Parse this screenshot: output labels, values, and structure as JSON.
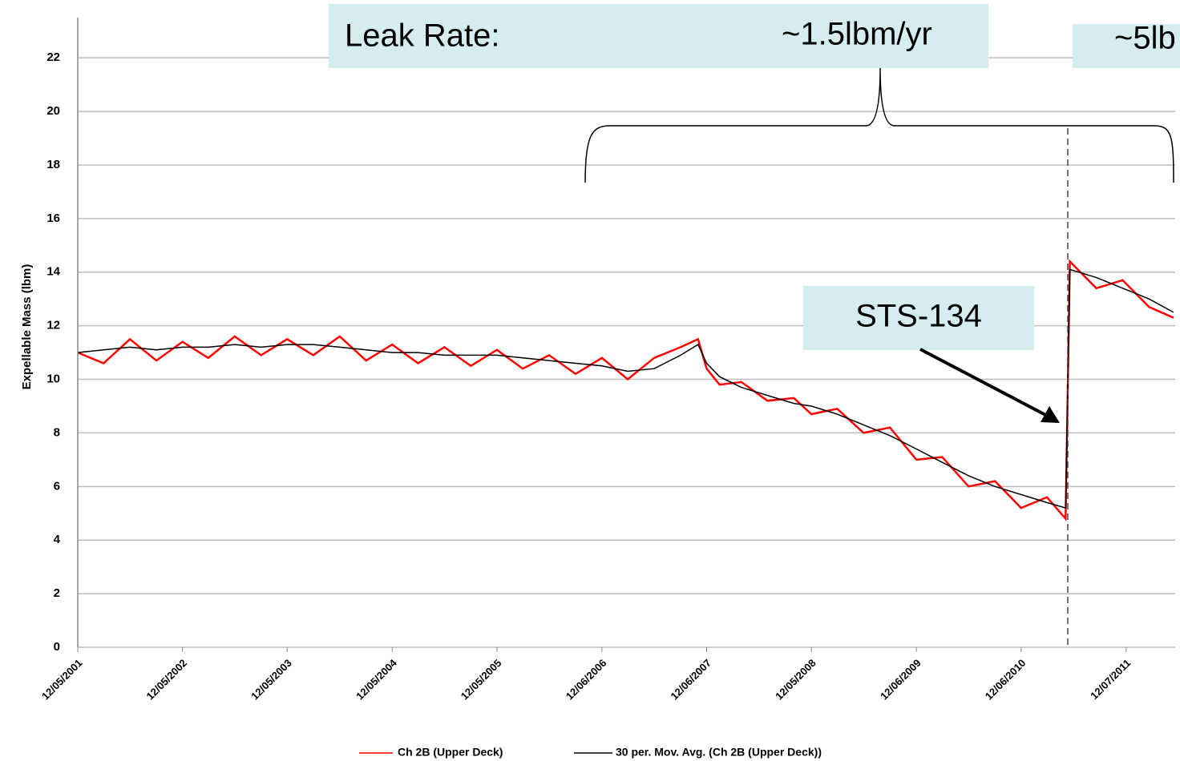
{
  "chart_data": {
    "type": "line",
    "y_label": "Expellable Mass (lbm)",
    "annotations": [
      "Leak Rate:",
      "~1.5lbm/yr",
      "~5lb",
      "STS-134"
    ],
    "x": [
      "12/05/2001",
      "03/05/2002",
      "06/05/2002",
      "09/05/2002",
      "12/05/2002",
      "03/05/2003",
      "06/05/2003",
      "09/05/2003",
      "12/05/2003",
      "03/05/2004",
      "06/05/2004",
      "09/05/2004",
      "12/05/2004",
      "03/05/2005",
      "06/05/2005",
      "09/05/2005",
      "12/05/2005",
      "03/05/2006",
      "06/05/2006",
      "09/05/2006",
      "12/06/2006",
      "03/06/2007",
      "06/06/2007",
      "09/06/2007",
      "11/06/2007",
      "12/06/2007",
      "01/20/2008",
      "04/05/2008",
      "07/05/2008",
      "10/05/2008",
      "12/05/2008",
      "03/05/2009",
      "06/05/2009",
      "09/05/2009",
      "12/06/2009",
      "03/06/2010",
      "06/06/2010",
      "09/06/2010",
      "12/06/2010",
      "03/06/2011",
      "05/10/2011",
      "05/25/2011",
      "08/25/2011",
      "11/25/2011",
      "02/25/2012",
      "05/20/2012"
    ],
    "series": [
      {
        "name": "Ch 2B (Upper Deck)",
        "color": "#ff0000",
        "values": [
          11.0,
          10.6,
          11.5,
          10.7,
          11.4,
          10.8,
          11.6,
          10.9,
          11.5,
          10.9,
          11.6,
          10.7,
          11.3,
          10.6,
          11.2,
          10.5,
          11.1,
          10.4,
          10.9,
          10.2,
          10.8,
          10.0,
          10.8,
          11.2,
          11.5,
          10.4,
          9.8,
          9.9,
          9.2,
          9.3,
          8.7,
          8.9,
          8.0,
          8.2,
          7.0,
          7.1,
          6.0,
          6.2,
          5.2,
          5.6,
          4.8,
          14.4,
          13.4,
          13.7,
          12.7,
          12.3
        ]
      },
      {
        "name": "30 per. Mov. Avg. (Ch 2B (Upper Deck))",
        "color": "#000000",
        "values": [
          11.0,
          11.1,
          11.2,
          11.1,
          11.2,
          11.2,
          11.3,
          11.2,
          11.3,
          11.3,
          11.2,
          11.1,
          11.0,
          11.0,
          10.9,
          10.9,
          10.9,
          10.8,
          10.7,
          10.6,
          10.5,
          10.3,
          10.4,
          10.9,
          11.3,
          10.6,
          10.1,
          9.7,
          9.4,
          9.1,
          9.0,
          8.7,
          8.3,
          7.9,
          7.4,
          6.9,
          6.4,
          6.0,
          5.7,
          5.4,
          5.2,
          14.1,
          13.8,
          13.4,
          13.0,
          12.5
        ]
      }
    ],
    "xlim": [
      "12/05/2001",
      "05/26/2012"
    ],
    "xticks": [
      "12/05/2001",
      "12/05/2002",
      "12/05/2003",
      "12/05/2004",
      "12/05/2005",
      "12/06/2006",
      "12/06/2007",
      "12/05/2008",
      "12/06/2009",
      "12/06/2010",
      "12/07/2011"
    ],
    "ylim": [
      0,
      23.5
    ],
    "yticks": [
      0,
      2,
      4,
      6,
      8,
      10,
      12,
      14,
      16,
      18,
      20,
      22
    ],
    "grid": true
  }
}
